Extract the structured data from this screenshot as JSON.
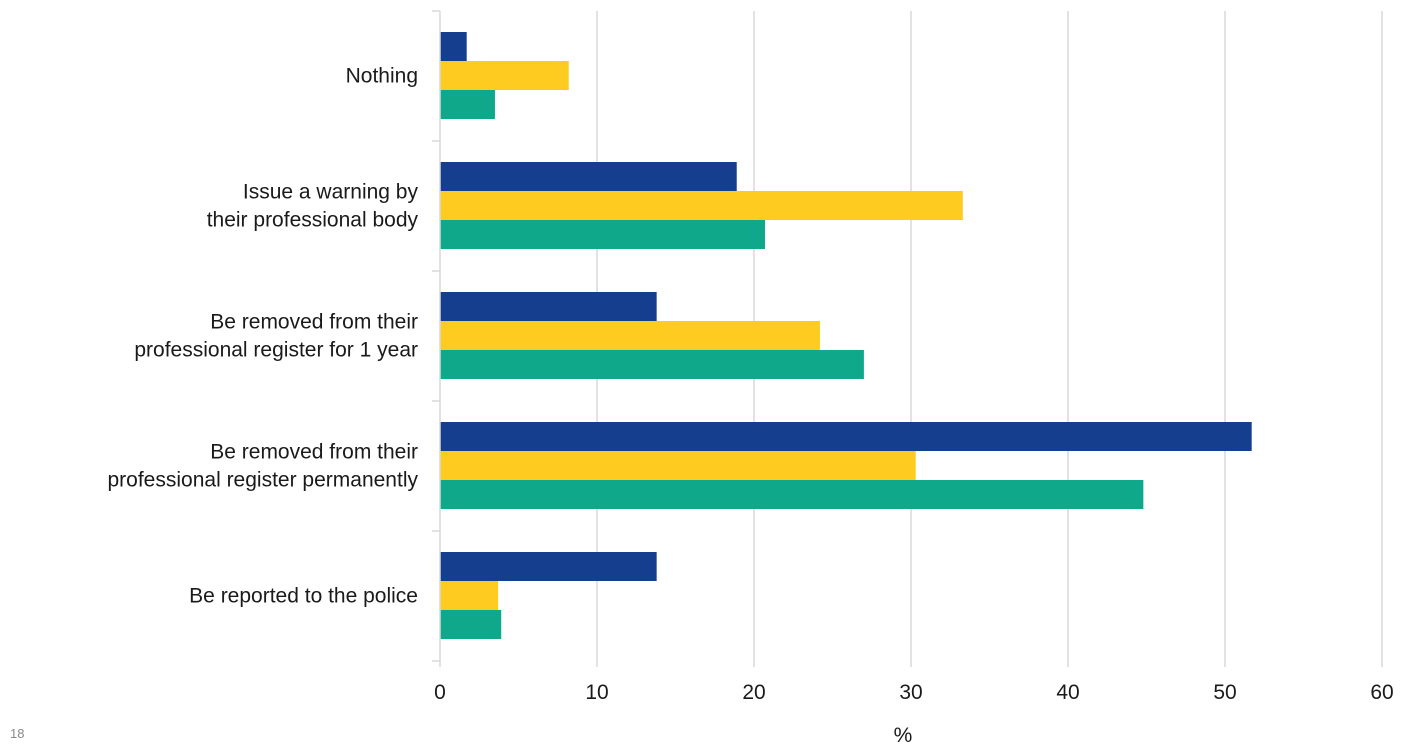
{
  "page_number": "18",
  "chart_data": {
    "type": "bar",
    "orientation": "horizontal",
    "title": "",
    "xlabel": "%",
    "ylabel": "",
    "xlim": [
      0,
      60
    ],
    "xticks": [
      0,
      10,
      20,
      30,
      40,
      50,
      60
    ],
    "grid": true,
    "categories": [
      [
        "Nothing"
      ],
      [
        "Issue a warning by",
        "their professional body"
      ],
      [
        "Be removed from their",
        "professional register for 1 year"
      ],
      [
        "Be removed from their",
        "professional register permanently"
      ],
      [
        "Be reported to the police"
      ]
    ],
    "series": [
      {
        "color": "#153e8e",
        "values": [
          1.7,
          18.9,
          13.8,
          51.7,
          13.8
        ]
      },
      {
        "color": "#fecb21",
        "values": [
          8.2,
          33.3,
          24.2,
          30.3,
          3.7
        ]
      },
      {
        "color": "#0fa88b",
        "values": [
          3.5,
          20.7,
          27.0,
          44.8,
          3.9
        ]
      }
    ]
  }
}
